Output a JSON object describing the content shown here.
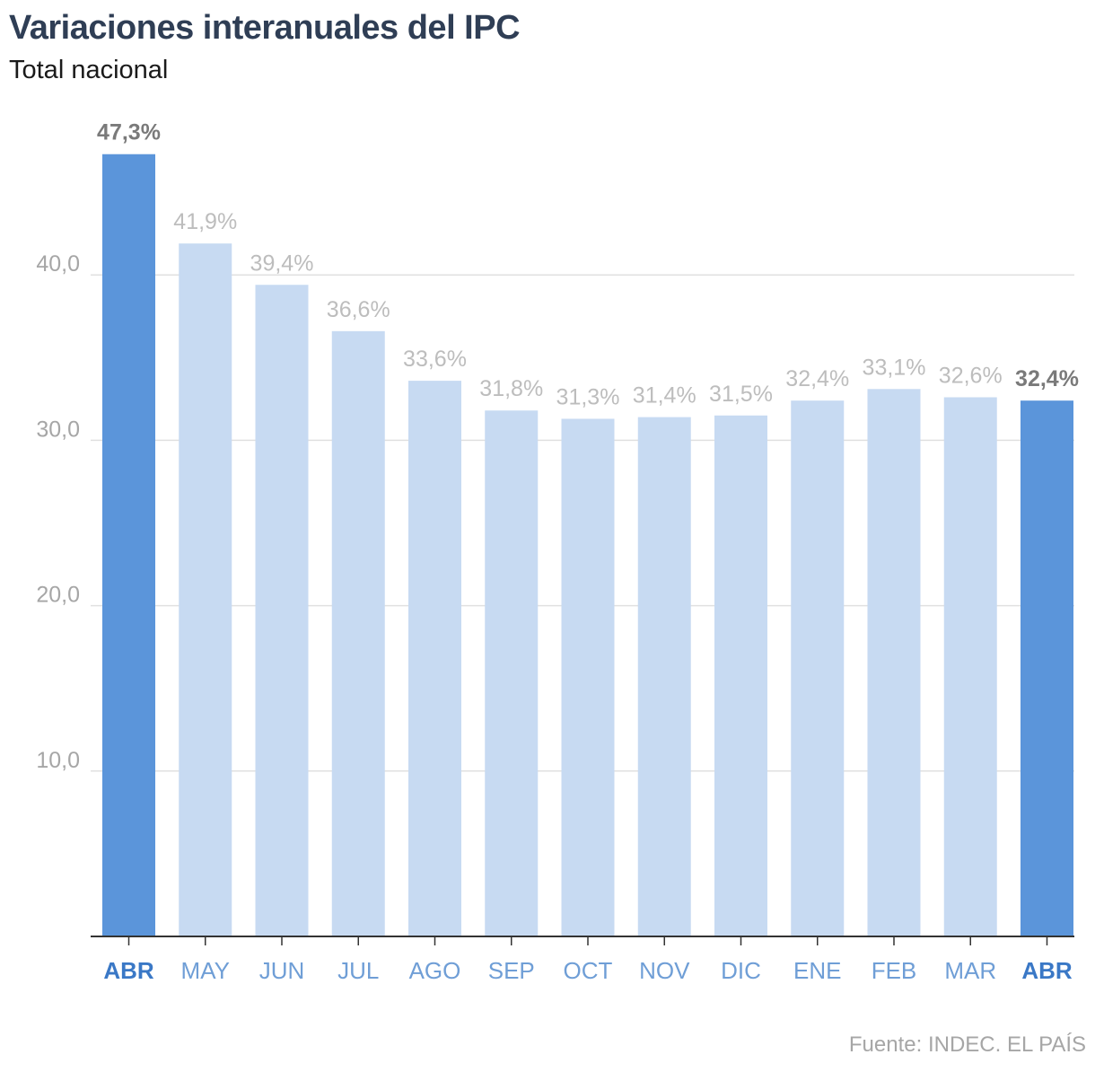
{
  "header": {
    "title": "Variaciones interanuales del IPC",
    "subtitle": "Total nacional"
  },
  "footer": {
    "source": "Fuente: INDEC. EL PAÍS"
  },
  "colors": {
    "highlight": "#5b95da",
    "regular": "#c7daf2",
    "highlight_label": "#7a7a7a",
    "regular_label": "#bdbdbd",
    "highlight_tick": "#3a78c6",
    "regular_tick": "#6f9ed6",
    "axis_label": "#a6a6a6",
    "grid": "#e0e0e0"
  },
  "chart_data": {
    "type": "bar",
    "title": "Variaciones interanuales del IPC",
    "subtitle": "Total nacional",
    "categories": [
      "ABR",
      "MAY",
      "JUN",
      "JUL",
      "AGO",
      "SEP",
      "OCT",
      "NOV",
      "DIC",
      "ENE",
      "FEB",
      "MAR",
      "ABR"
    ],
    "values": [
      47.3,
      41.9,
      39.4,
      36.6,
      33.6,
      31.8,
      31.3,
      31.4,
      31.5,
      32.4,
      33.1,
      32.6,
      32.4
    ],
    "data_labels": [
      "47,3%",
      "41,9%",
      "39,4%",
      "36,6%",
      "33,6%",
      "31,8%",
      "31,3%",
      "31,4%",
      "31,5%",
      "32,4%",
      "33,1%",
      "32,6%",
      "32,4%"
    ],
    "highlighted": [
      true,
      false,
      false,
      false,
      false,
      false,
      false,
      false,
      false,
      false,
      false,
      false,
      true
    ],
    "y_ticks": [
      10,
      20,
      30,
      40
    ],
    "y_tick_labels": [
      "10,0",
      "20,0",
      "30,0",
      "40,0"
    ],
    "ylim": [
      0,
      50
    ],
    "xlabel": "",
    "ylabel": "",
    "grid": true,
    "legend": "none",
    "source": "Fuente: INDEC. EL PAÍS"
  }
}
